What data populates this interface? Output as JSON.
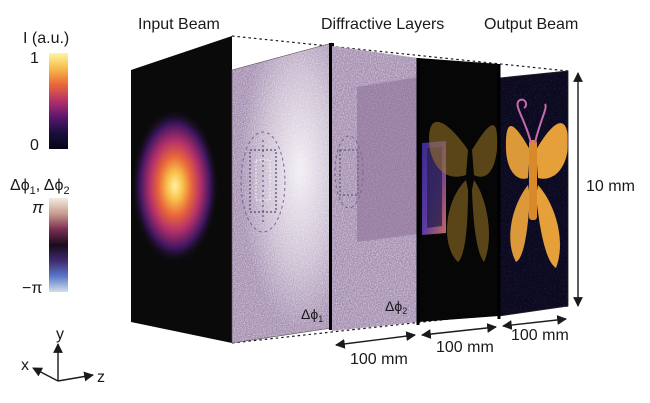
{
  "intensity_bar": {
    "title": "I (a.u.)",
    "max_label": "1",
    "min_label": "0",
    "colors": [
      "#fdf6a0",
      "#f8b84a",
      "#e8663a",
      "#b3306a",
      "#5b1670",
      "#1a0f3c",
      "#050515"
    ]
  },
  "phase_bar": {
    "title_parts": [
      "Δϕ",
      "1",
      ", Δϕ",
      "2"
    ],
    "max_label": "π",
    "min_label": "−π",
    "colors": [
      "#f1ece4",
      "#c99c8d",
      "#7c2e52",
      "#1a0a1d",
      "#3e2a6e",
      "#5a78c8",
      "#cfe0ea"
    ]
  },
  "headers": {
    "input": "Input Beam",
    "diffractive": "Diffractive Layers",
    "output": "Output Beam"
  },
  "layer_labels": {
    "layer1": [
      "Δϕ",
      "1"
    ],
    "layer2": [
      "Δϕ",
      "2"
    ]
  },
  "dimensions": {
    "height": "10 mm",
    "spacing": [
      "100 mm",
      "100 mm",
      "100 mm"
    ]
  },
  "axes": {
    "x": "x",
    "y": "y",
    "z": "z"
  },
  "colors": {
    "panel_dark": "#0a0a0a",
    "phase_mask": "#a88fb5",
    "beam_core": "#fff07a",
    "butterfly": "#f2a93c"
  }
}
